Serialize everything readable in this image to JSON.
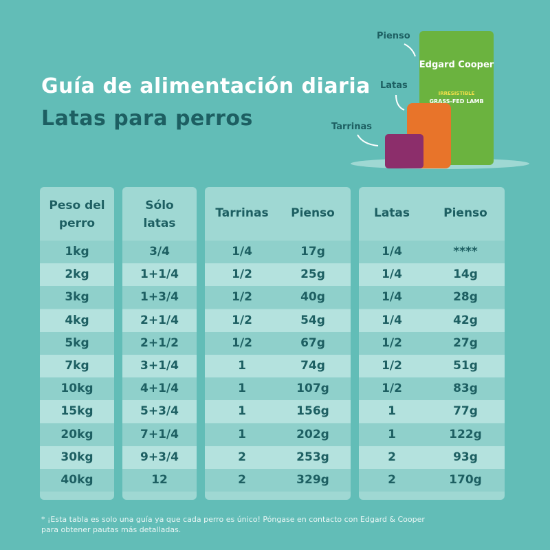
{
  "header": {
    "title": "Guía de alimentación diaria",
    "subtitle": "Latas para perros"
  },
  "product": {
    "labels": [
      "Pienso",
      "Latas",
      "Tarrinas"
    ],
    "brand": "Edgard Cooper",
    "bag_text": [
      "IRRESISTIBLE",
      "GRASS-FED LAMB"
    ]
  },
  "table": {
    "headers": [
      "Peso del perro",
      "Sólo latas",
      "Tarrinas",
      "Pienso",
      "Latas",
      "Pienso"
    ],
    "rows": [
      [
        "1kg",
        "3/4",
        "1/4",
        "17g",
        "1/4",
        "****"
      ],
      [
        "2kg",
        "1+1/4",
        "1/2",
        "25g",
        "1/4",
        "14g"
      ],
      [
        "3kg",
        "1+3/4",
        "1/2",
        "40g",
        "1/4",
        "28g"
      ],
      [
        "4kg",
        "2+1/4",
        "1/2",
        "54g",
        "1/4",
        "42g"
      ],
      [
        "5kg",
        "2+1/2",
        "1/2",
        "67g",
        "1/2",
        "27g"
      ],
      [
        "7kg",
        "3+1/4",
        "1",
        "74g",
        "1/2",
        "51g"
      ],
      [
        "10kg",
        "4+1/4",
        "1",
        "107g",
        "1/2",
        "83g"
      ],
      [
        "15kg",
        "5+3/4",
        "1",
        "156g",
        "1",
        "77g"
      ],
      [
        "20kg",
        "7+1/4",
        "1",
        "202g",
        "1",
        "122g"
      ],
      [
        "30kg",
        "9+3/4",
        "2",
        "253g",
        "2",
        "93g"
      ],
      [
        "40kg",
        "12",
        "2",
        "329g",
        "2",
        "170g"
      ]
    ]
  },
  "footnote": "* ¡Esta tabla es solo una guía ya que cada perro es único! Póngase en contacto con Edgard & Cooper para obtener pautas más detalladas."
}
